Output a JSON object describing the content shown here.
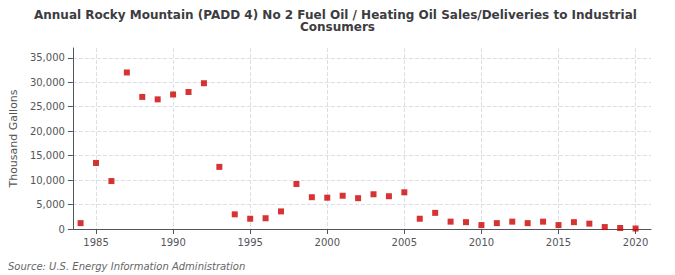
{
  "chart_data": {
    "type": "scatter",
    "title": "Annual Rocky Mountain (PADD 4) No 2 Fuel Oil / Heating Oil Sales/Deliveries to Industrial Consumers",
    "ylabel": "Thousand Gallons",
    "annotation": "Source: U.S. Energy Information Administration",
    "x": [
      1984,
      1985,
      1986,
      1987,
      1988,
      1989,
      1990,
      1991,
      1992,
      1993,
      1994,
      1995,
      1996,
      1997,
      1998,
      1999,
      2000,
      2001,
      2002,
      2003,
      2004,
      2005,
      2006,
      2007,
      2008,
      2009,
      2010,
      2011,
      2012,
      2013,
      2014,
      2015,
      2016,
      2017,
      2018,
      2019,
      2020
    ],
    "values": [
      1200,
      13500,
      9800,
      32000,
      27000,
      26500,
      27500,
      28000,
      29800,
      12700,
      3000,
      2100,
      2200,
      3600,
      9200,
      6500,
      6400,
      6800,
      6300,
      7100,
      6700,
      7500,
      2100,
      3300,
      1500,
      1400,
      800,
      1200,
      1500,
      1200,
      1500,
      800,
      1400,
      1100,
      400,
      200,
      100
    ],
    "color": "#cc0000",
    "marker": "square",
    "xlim": [
      1983.5,
      2021
    ],
    "xticks": [
      1985,
      1990,
      1995,
      2000,
      2005,
      2010,
      2015,
      2020
    ],
    "ylim": [
      0,
      37000
    ],
    "yticks": [
      0,
      {
        "value": 5000,
        "label": "5,000"
      },
      {
        "value": 10000,
        "label": "10,000"
      },
      {
        "value": 15000,
        "label": "15,000"
      },
      {
        "value": 20000,
        "label": "20,000"
      },
      {
        "value": 25000,
        "label": "25,000"
      },
      {
        "value": 30000,
        "label": "30,000"
      },
      {
        "value": 35000,
        "label": "35,000"
      }
    ],
    "grid": true
  }
}
